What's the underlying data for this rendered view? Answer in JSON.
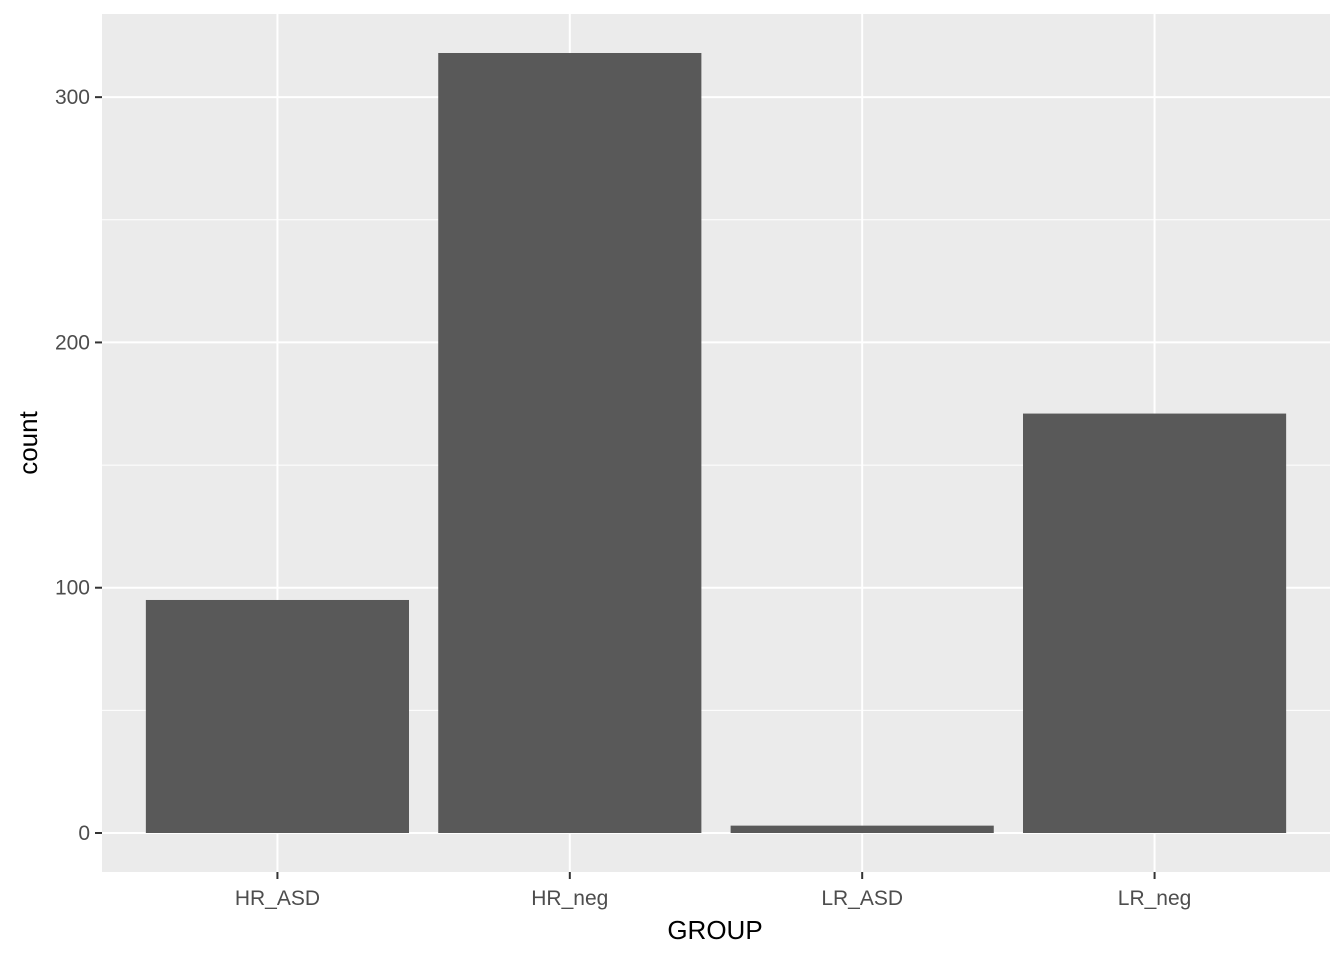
{
  "chart_data": {
    "type": "bar",
    "categories": [
      "HR_ASD",
      "HR_neg",
      "LR_ASD",
      "LR_neg"
    ],
    "values": [
      95,
      318,
      3,
      171
    ],
    "title": "",
    "xlabel": "GROUP",
    "ylabel": "count",
    "ylim": [
      -15.9,
      333.9
    ],
    "yticks": [
      0,
      100,
      200,
      300
    ],
    "grid": true,
    "colors": {
      "panel": "#ebebeb",
      "grid": "#ffffff",
      "bar": "#595959",
      "tick_text": "#4d4d4d",
      "title_text": "#000000"
    }
  }
}
